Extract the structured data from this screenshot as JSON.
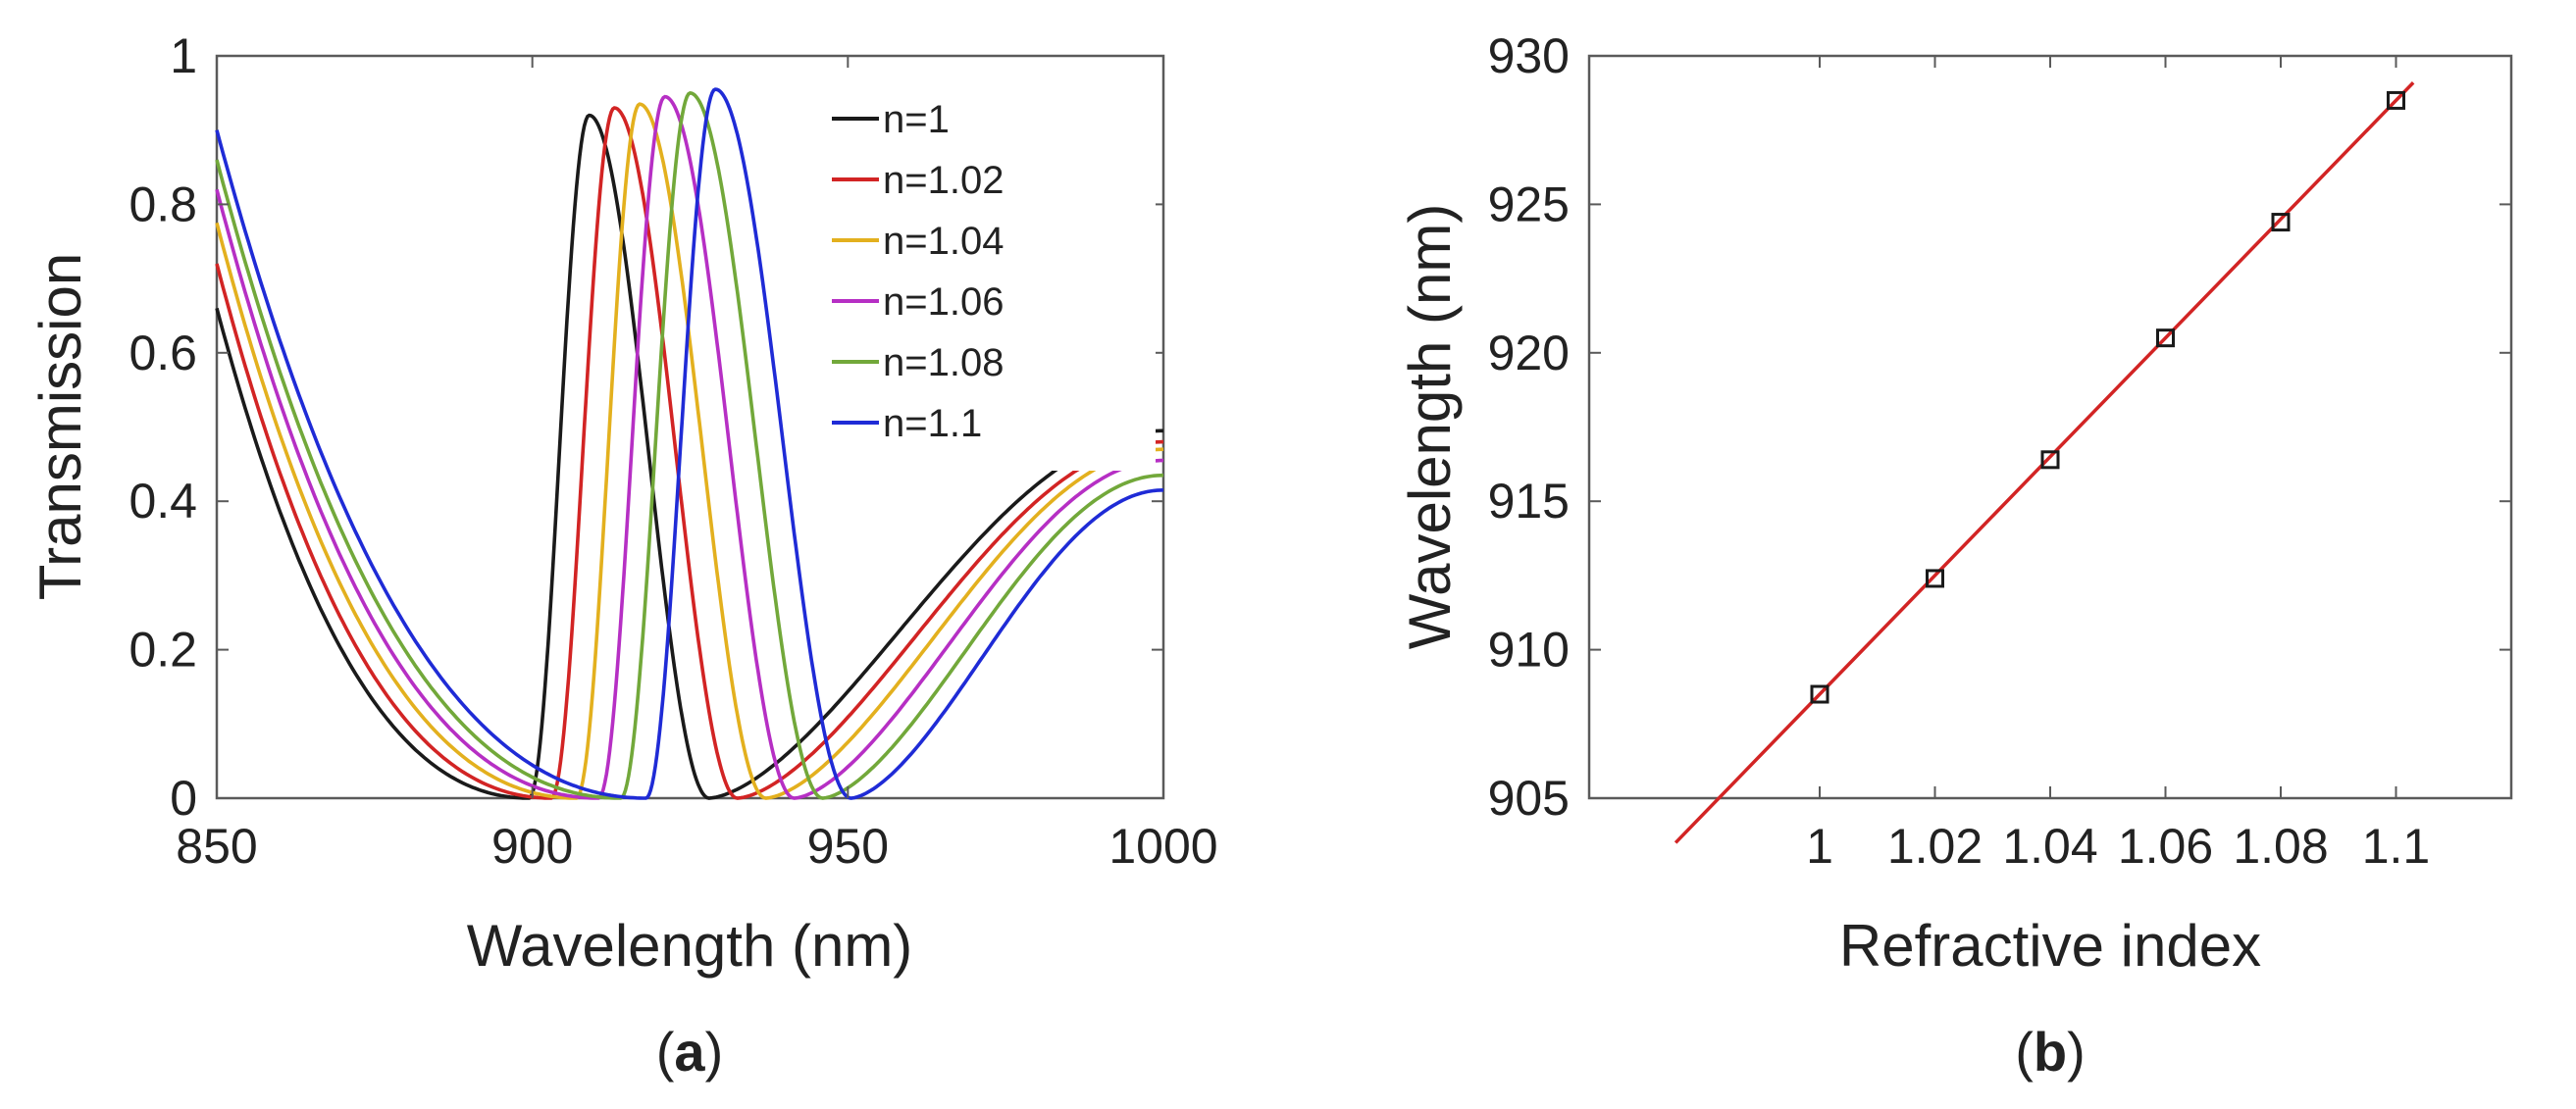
{
  "chart_data": [
    {
      "type": "line",
      "panel_label": "a",
      "title": "",
      "xlabel": "Wavelength (nm)",
      "ylabel": "Transmission",
      "xlim": [
        850,
        1000
      ],
      "ylim": [
        0,
        1
      ],
      "xticks": [
        850,
        900,
        950,
        1000
      ],
      "xtick_labels": [
        "850",
        "900",
        "950",
        "1000"
      ],
      "yticks": [
        0,
        0.2,
        0.4,
        0.6,
        0.8,
        1
      ],
      "ytick_labels": [
        "0",
        "0.2",
        "0.4",
        "0.6",
        "0.8",
        "1"
      ],
      "grid": false,
      "legend_position": "top-right",
      "series": [
        {
          "name": "n=1",
          "color": "#1a1a1a",
          "dip1": 899.5,
          "peak": 909.0,
          "peak_value": 0.92,
          "dip2": 928.0,
          "value_at_850": 0.66,
          "value_at_1000": 0.495
        },
        {
          "name": "n=1.02",
          "color": "#d22424",
          "dip1": 903.0,
          "peak": 913.0,
          "peak_value": 0.93,
          "dip2": 932.5,
          "value_at_850": 0.72,
          "value_at_1000": 0.48
        },
        {
          "name": "n=1.04",
          "color": "#e3b01e",
          "dip1": 907.0,
          "peak": 917.0,
          "peak_value": 0.935,
          "dip2": 937.0,
          "value_at_850": 0.775,
          "value_at_1000": 0.47
        },
        {
          "name": "n=1.06",
          "color": "#b62fc4",
          "dip1": 910.5,
          "peak": 921.0,
          "peak_value": 0.945,
          "dip2": 941.5,
          "value_at_850": 0.82,
          "value_at_1000": 0.455
        },
        {
          "name": "n=1.08",
          "color": "#72a83a",
          "dip1": 914.0,
          "peak": 925.0,
          "peak_value": 0.95,
          "dip2": 946.0,
          "value_at_850": 0.86,
          "value_at_1000": 0.435
        },
        {
          "name": "n=1.1",
          "color": "#1f2bd6",
          "dip1": 918.0,
          "peak": 929.0,
          "peak_value": 0.955,
          "dip2": 950.5,
          "value_at_850": 0.9,
          "value_at_1000": 0.415
        }
      ]
    },
    {
      "type": "scatter",
      "panel_label": "b",
      "title": "",
      "xlabel": "Refractive index",
      "ylabel": "Wavelength (nm)",
      "xlim": [
        0.96,
        1.12
      ],
      "ylim": [
        905,
        930
      ],
      "xticks": [
        1,
        1.02,
        1.04,
        1.06,
        1.08,
        1.1
      ],
      "xtick_labels": [
        "1",
        "1.02",
        "1.04",
        "1.06",
        "1.08",
        "1.1"
      ],
      "yticks": [
        905,
        910,
        915,
        920,
        925,
        930
      ],
      "ytick_labels": [
        "905",
        "910",
        "915",
        "920",
        "925",
        "930"
      ],
      "grid": false,
      "x": [
        1,
        1.02,
        1.04,
        1.06,
        1.08,
        1.1
      ],
      "y": [
        908.5,
        912.4,
        916.4,
        920.5,
        924.4,
        928.5
      ],
      "marker": "square",
      "marker_color": "#1a1a1a",
      "fit": {
        "slope": 200.0,
        "intercept": 708.5,
        "x_start": 0.975,
        "x_end": 1.103,
        "color": "#d22424"
      }
    }
  ]
}
